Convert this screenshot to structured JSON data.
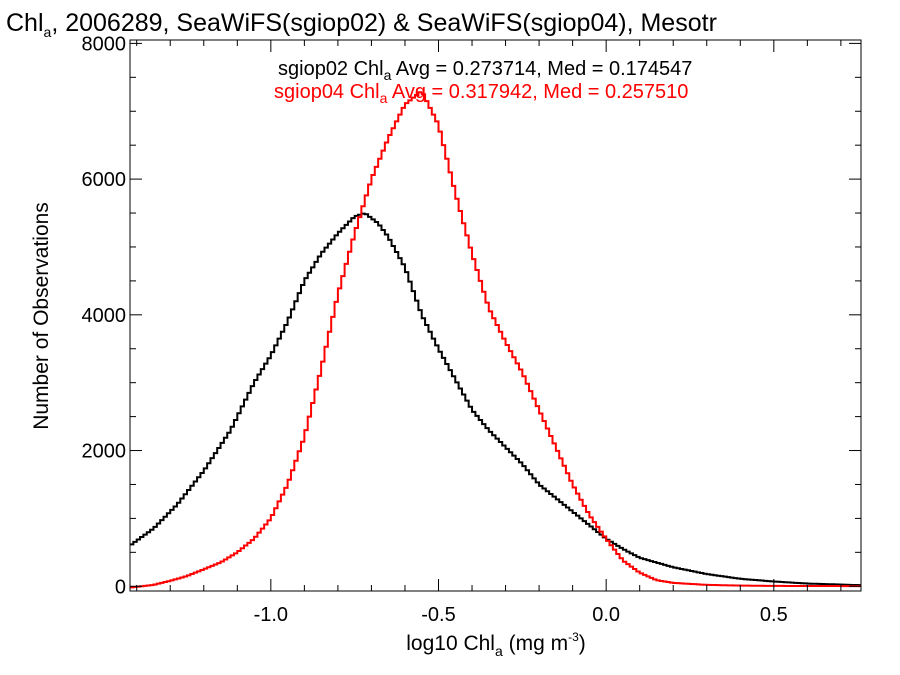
{
  "chart_data": {
    "type": "line",
    "title": {
      "prefix": "Chl",
      "subscript": "a",
      "suffix": ", 2006289, SeaWiFS(sgiop02) & SeaWiFS(sgiop04), Mesotr"
    },
    "xlabel": {
      "prefix": "log10 Chl",
      "subscript": "a",
      "units_pre": " (mg m",
      "superscript": "-3",
      "units_post": ")"
    },
    "ylabel": "Number of Observations",
    "xlim": [
      -1.42,
      0.76
    ],
    "ylim": [
      -70,
      8050
    ],
    "xticks": [
      {
        "value": -1.0,
        "label": "-1.0"
      },
      {
        "value": -0.5,
        "label": "-0.5"
      },
      {
        "value": 0.0,
        "label": "0.0"
      },
      {
        "value": 0.5,
        "label": "0.5"
      }
    ],
    "yticks": [
      {
        "value": 0,
        "label": "0"
      },
      {
        "value": 2000,
        "label": "2000"
      },
      {
        "value": 4000,
        "label": "4000"
      },
      {
        "value": 6000,
        "label": "6000"
      },
      {
        "value": 8000,
        "label": "8000"
      }
    ],
    "grid": false,
    "series": [
      {
        "name": "sgiop02",
        "color": "#000000",
        "annotation": {
          "prefix": "sgiop02 Chl",
          "subscript": "a",
          "suffix": " Avg = 0.273714, Med = 0.174547"
        },
        "points": [
          [
            -1.42,
            600
          ],
          [
            -1.35,
            850
          ],
          [
            -1.28,
            1200
          ],
          [
            -1.2,
            1700
          ],
          [
            -1.12,
            2300
          ],
          [
            -1.05,
            3000
          ],
          [
            -1.0,
            3400
          ],
          [
            -0.95,
            3900
          ],
          [
            -0.9,
            4500
          ],
          [
            -0.85,
            4900
          ],
          [
            -0.8,
            5200
          ],
          [
            -0.75,
            5450
          ],
          [
            -0.72,
            5500
          ],
          [
            -0.68,
            5350
          ],
          [
            -0.65,
            5150
          ],
          [
            -0.6,
            4700
          ],
          [
            -0.55,
            4000
          ],
          [
            -0.5,
            3500
          ],
          [
            -0.45,
            3050
          ],
          [
            -0.4,
            2600
          ],
          [
            -0.35,
            2300
          ],
          [
            -0.3,
            2050
          ],
          [
            -0.25,
            1800
          ],
          [
            -0.2,
            1500
          ],
          [
            -0.15,
            1300
          ],
          [
            -0.1,
            1100
          ],
          [
            -0.05,
            900
          ],
          [
            0.0,
            700
          ],
          [
            0.05,
            550
          ],
          [
            0.1,
            420
          ],
          [
            0.2,
            280
          ],
          [
            0.3,
            180
          ],
          [
            0.4,
            110
          ],
          [
            0.5,
            70
          ],
          [
            0.6,
            40
          ],
          [
            0.7,
            25
          ],
          [
            0.76,
            15
          ]
        ]
      },
      {
        "name": "sgiop04",
        "color": "#ff0000",
        "annotation": {
          "prefix": "sgiop04 Chl",
          "subscript": "a",
          "suffix": " Avg = 0.317942, Med = 0.257510"
        },
        "points": [
          [
            -1.42,
            -20
          ],
          [
            -1.35,
            20
          ],
          [
            -1.3,
            80
          ],
          [
            -1.25,
            150
          ],
          [
            -1.2,
            250
          ],
          [
            -1.15,
            350
          ],
          [
            -1.1,
            500
          ],
          [
            -1.05,
            700
          ],
          [
            -1.0,
            1000
          ],
          [
            -0.95,
            1500
          ],
          [
            -0.9,
            2200
          ],
          [
            -0.85,
            3200
          ],
          [
            -0.8,
            4300
          ],
          [
            -0.75,
            5200
          ],
          [
            -0.7,
            6000
          ],
          [
            -0.65,
            6600
          ],
          [
            -0.6,
            7100
          ],
          [
            -0.55,
            7300
          ],
          [
            -0.5,
            6800
          ],
          [
            -0.45,
            5800
          ],
          [
            -0.4,
            4900
          ],
          [
            -0.35,
            4100
          ],
          [
            -0.3,
            3600
          ],
          [
            -0.25,
            3150
          ],
          [
            -0.2,
            2600
          ],
          [
            -0.15,
            2050
          ],
          [
            -0.1,
            1500
          ],
          [
            -0.05,
            1050
          ],
          [
            0.0,
            700
          ],
          [
            0.05,
            380
          ],
          [
            0.1,
            200
          ],
          [
            0.15,
            90
          ],
          [
            0.2,
            50
          ],
          [
            0.3,
            20
          ],
          [
            0.4,
            10
          ],
          [
            0.5,
            5
          ],
          [
            0.76,
            2
          ]
        ]
      }
    ]
  }
}
